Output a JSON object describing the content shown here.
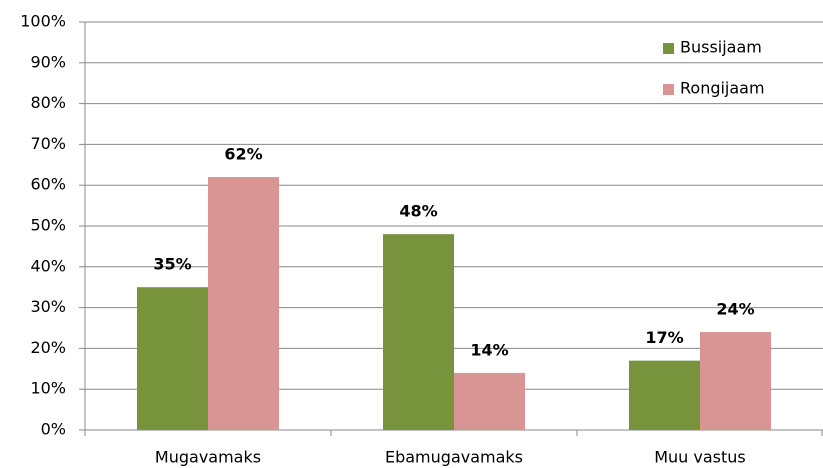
{
  "chart_data": {
    "type": "bar",
    "categories": [
      "Mugavamaks",
      "Ebamugavamaks",
      "Muu vastus"
    ],
    "series": [
      {
        "name": "Bussijaam",
        "color": "#77933c",
        "values": [
          35,
          48,
          17
        ],
        "value_labels": [
          "35%",
          "48%",
          "17%"
        ]
      },
      {
        "name": "Rongijaam",
        "color": "#d99594",
        "values": [
          62,
          14,
          24
        ],
        "value_labels": [
          "62%",
          "14%",
          "24%"
        ]
      }
    ],
    "ylim": [
      0,
      100
    ],
    "yticks": [
      {
        "value": 0,
        "label": "0%"
      },
      {
        "value": 10,
        "label": "10%"
      },
      {
        "value": 20,
        "label": "20%"
      },
      {
        "value": 30,
        "label": "30%"
      },
      {
        "value": 40,
        "label": "40%"
      },
      {
        "value": 50,
        "label": "50%"
      },
      {
        "value": 60,
        "label": "60%"
      },
      {
        "value": 70,
        "label": "70%"
      },
      {
        "value": 80,
        "label": "80%"
      },
      {
        "value": 90,
        "label": "90%"
      },
      {
        "value": 100,
        "label": "100%"
      }
    ],
    "grid": true,
    "legend": "top-right"
  }
}
